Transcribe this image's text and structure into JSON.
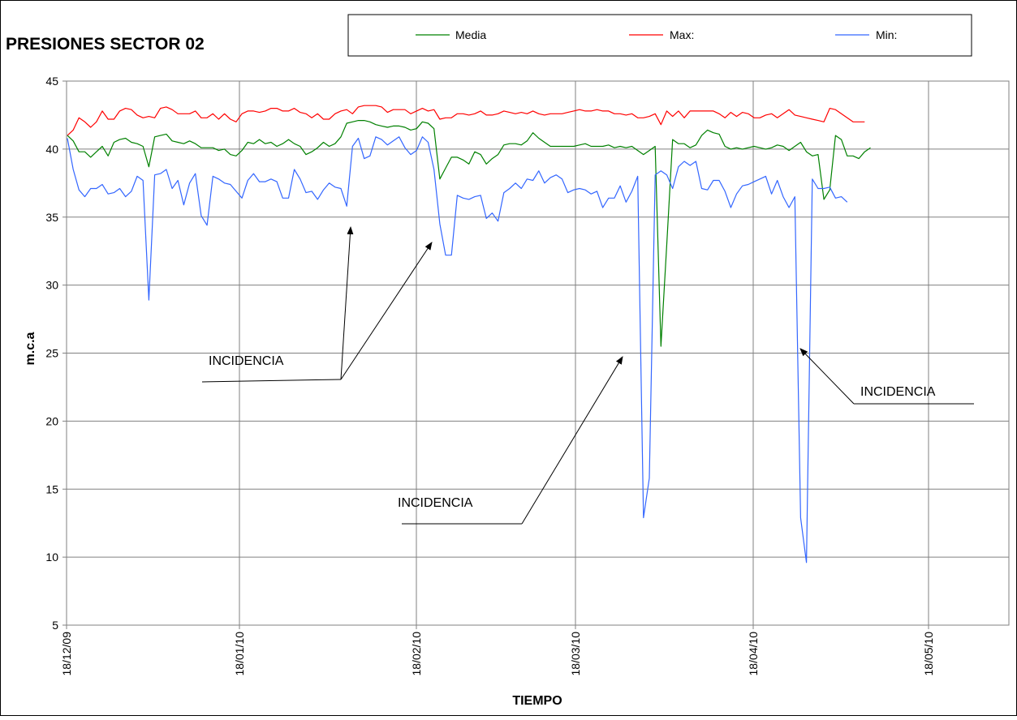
{
  "chart_data": {
    "type": "line",
    "title": "PRESIONES SECTOR 02",
    "xlabel": "TIEMPO",
    "ylabel": "m.c.a",
    "ylim": [
      5,
      45
    ],
    "yticks": [
      5,
      10,
      15,
      20,
      25,
      30,
      35,
      40,
      45
    ],
    "xticks": [
      "18/12/09",
      "18/01/10",
      "18/02/10",
      "18/03/10",
      "18/04/10",
      "18/05/10"
    ],
    "grid": true,
    "legend": "top-right",
    "series": [
      {
        "name": "Media",
        "color": "#008000",
        "values": [
          41.0,
          40.6,
          39.8,
          39.8,
          39.4,
          39.8,
          40.2,
          39.5,
          40.5,
          40.7,
          40.8,
          40.5,
          40.4,
          40.2,
          38.7,
          40.9,
          41.0,
          41.1,
          40.6,
          40.5,
          40.4,
          40.6,
          40.4,
          40.1,
          40.1,
          40.1,
          39.9,
          40.0,
          39.6,
          39.5,
          39.9,
          40.5,
          40.4,
          40.7,
          40.4,
          40.5,
          40.2,
          40.4,
          40.7,
          40.4,
          40.2,
          39.6,
          39.8,
          40.1,
          40.5,
          40.2,
          40.4,
          40.9,
          41.9,
          42.0,
          42.1,
          42.1,
          42.0,
          41.8,
          41.7,
          41.6,
          41.7,
          41.7,
          41.6,
          41.4,
          41.5,
          42.0,
          41.9,
          41.5,
          37.8,
          38.6,
          39.4,
          39.4,
          39.2,
          38.9,
          39.8,
          39.6,
          38.9,
          39.3,
          39.6,
          40.3,
          40.4,
          40.4,
          40.3,
          40.6,
          41.2,
          40.8,
          40.5,
          40.2,
          40.2,
          40.2,
          40.2,
          40.2,
          40.3,
          40.4,
          40.2,
          40.2,
          40.2,
          40.3,
          40.1,
          40.2,
          40.1,
          40.2,
          39.9,
          39.6,
          39.9,
          40.2,
          25.5,
          33.0,
          40.7,
          40.4,
          40.4,
          40.1,
          40.3,
          41.0,
          41.4,
          41.2,
          41.1,
          40.2,
          40.0,
          40.1,
          40.0,
          40.1,
          40.2,
          40.1,
          40.0,
          40.1,
          40.3,
          40.2,
          39.9,
          40.2,
          40.5,
          39.8,
          39.5,
          39.6,
          36.3,
          37.0,
          41.0,
          40.7,
          39.5,
          39.5,
          39.3,
          39.8,
          40.1
        ]
      },
      {
        "name": "Max:",
        "color": "#ff0000",
        "values": [
          41.0,
          41.4,
          42.3,
          42.0,
          41.6,
          42.0,
          42.8,
          42.2,
          42.2,
          42.8,
          43.0,
          42.9,
          42.5,
          42.3,
          42.4,
          42.3,
          43.0,
          43.1,
          42.9,
          42.6,
          42.6,
          42.6,
          42.8,
          42.3,
          42.3,
          42.6,
          42.2,
          42.6,
          42.2,
          42.0,
          42.6,
          42.8,
          42.8,
          42.7,
          42.8,
          43.0,
          43.0,
          42.8,
          42.8,
          43.0,
          42.7,
          42.6,
          42.3,
          42.6,
          42.2,
          42.2,
          42.6,
          42.8,
          42.9,
          42.6,
          43.1,
          43.2,
          43.2,
          43.2,
          43.1,
          42.7,
          42.9,
          42.9,
          42.9,
          42.6,
          42.8,
          43.0,
          42.8,
          42.9,
          42.2,
          42.3,
          42.3,
          42.6,
          42.6,
          42.5,
          42.6,
          42.8,
          42.5,
          42.5,
          42.6,
          42.8,
          42.7,
          42.6,
          42.7,
          42.6,
          42.8,
          42.6,
          42.5,
          42.6,
          42.6,
          42.6,
          42.7,
          42.8,
          42.9,
          42.8,
          42.8,
          42.9,
          42.8,
          42.8,
          42.6,
          42.6,
          42.5,
          42.6,
          42.3,
          42.3,
          42.4,
          42.6,
          41.8,
          42.8,
          42.4,
          42.8,
          42.3,
          42.8,
          42.8,
          42.8,
          42.8,
          42.8,
          42.6,
          42.3,
          42.7,
          42.4,
          42.7,
          42.6,
          42.3,
          42.3,
          42.5,
          42.6,
          42.3,
          42.6,
          42.9,
          42.5,
          42.4,
          42.3,
          42.2,
          42.1,
          42.0,
          43.0,
          42.9,
          42.6,
          42.3,
          42.0,
          42.0,
          42.0
        ]
      },
      {
        "name": "Min:",
        "color": "#3366ff",
        "values": [
          40.8,
          38.5,
          37.0,
          36.5,
          37.1,
          37.1,
          37.4,
          36.7,
          36.8,
          37.1,
          36.5,
          36.9,
          38.0,
          37.7,
          28.9,
          38.1,
          38.2,
          38.5,
          37.1,
          37.7,
          35.9,
          37.5,
          38.2,
          35.1,
          34.4,
          38.0,
          37.8,
          37.5,
          37.4,
          36.9,
          36.4,
          37.7,
          38.2,
          37.6,
          37.6,
          37.8,
          37.6,
          36.4,
          36.4,
          38.5,
          37.8,
          36.8,
          36.9,
          36.3,
          37.0,
          37.5,
          37.2,
          37.1,
          35.8,
          40.2,
          40.8,
          39.3,
          39.5,
          40.9,
          40.7,
          40.3,
          40.6,
          40.9,
          40.1,
          39.6,
          39.9,
          40.9,
          40.5,
          38.5,
          34.5,
          32.2,
          32.2,
          36.6,
          36.4,
          36.3,
          36.5,
          36.6,
          34.9,
          35.3,
          34.7,
          36.8,
          37.1,
          37.5,
          37.1,
          37.8,
          37.7,
          38.4,
          37.5,
          37.9,
          38.1,
          37.8,
          36.8,
          37.0,
          37.1,
          37.0,
          36.7,
          36.9,
          35.7,
          36.4,
          36.4,
          37.3,
          36.1,
          36.9,
          38.0,
          12.9,
          15.8,
          38.1,
          38.4,
          38.1,
          37.1,
          38.7,
          39.1,
          38.8,
          39.1,
          37.1,
          37.0,
          37.7,
          37.7,
          36.9,
          35.7,
          36.7,
          37.3,
          37.4,
          37.6,
          37.8,
          38.0,
          36.7,
          37.7,
          36.5,
          35.7,
          36.5,
          12.9,
          9.6,
          37.8,
          37.1,
          37.1,
          37.2,
          36.4,
          36.5,
          36.1
        ]
      }
    ],
    "annotations": [
      {
        "text": "INCIDENCIA",
        "targets": [
          [
            49,
            34.3
          ],
          [
            64,
            33.2
          ]
        ]
      },
      {
        "text": "INCIDENCIA",
        "targets": [
          [
            99,
            24.7
          ]
        ]
      },
      {
        "text": "INCIDENCIA",
        "targets": [
          [
            127,
            25.4
          ]
        ]
      }
    ]
  }
}
